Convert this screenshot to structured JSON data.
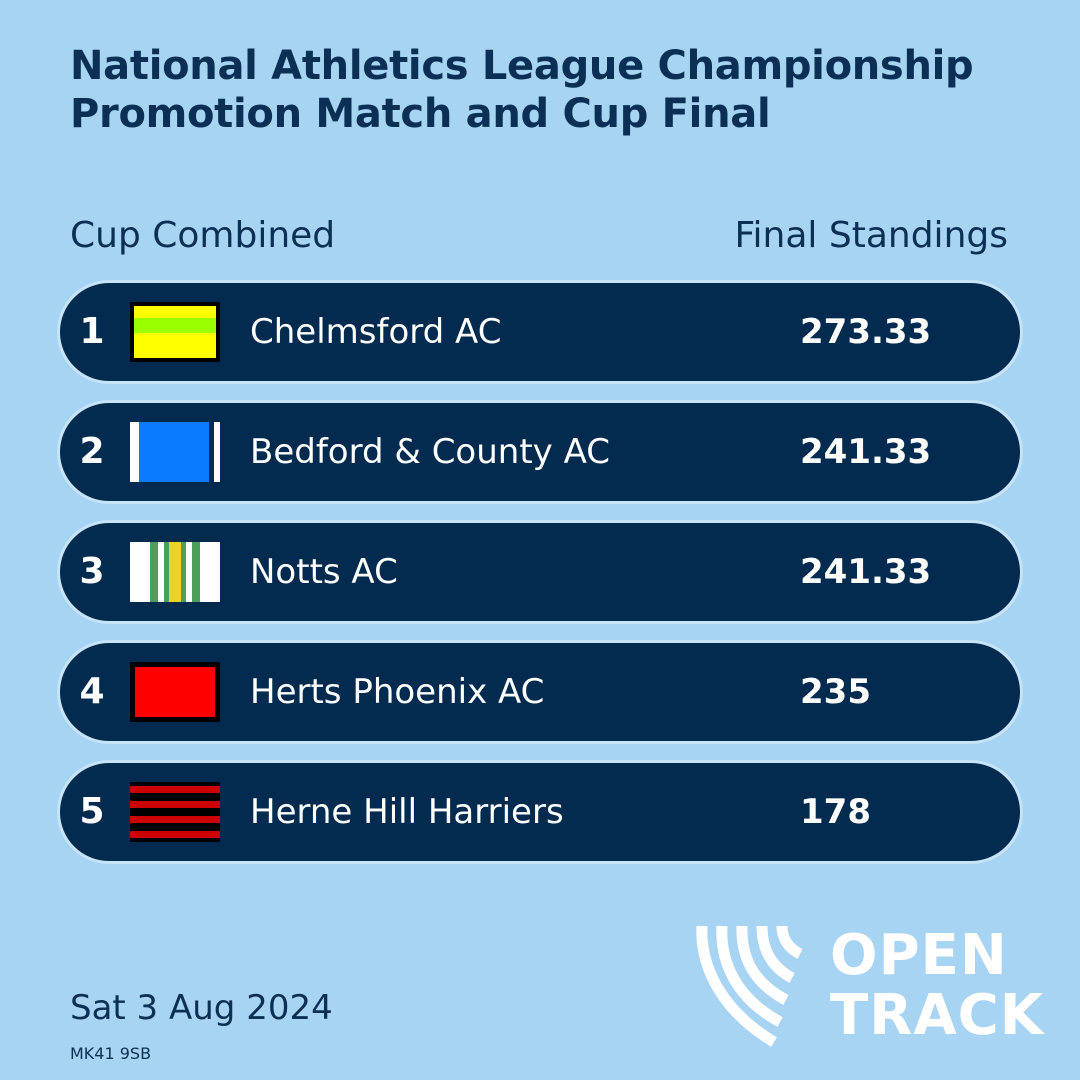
{
  "title": {
    "line1": "National Athletics League Championship",
    "line2": "Promotion Match and Cup Final"
  },
  "subheader": {
    "left": "Cup Combined",
    "right": "Final Standings"
  },
  "standings": [
    {
      "rank": "1",
      "team": "Chelmsford AC",
      "score": "273.33",
      "flag_icon": "chelmsford-colours-flag",
      "colors": [
        "#ffff00",
        "#99ff00",
        "#000000"
      ]
    },
    {
      "rank": "2",
      "team": "Bedford & County AC",
      "score": "241.33",
      "flag_icon": "bedford-colours-flag",
      "colors": [
        "#0a7bff",
        "#ffffff"
      ]
    },
    {
      "rank": "3",
      "team": "Notts AC",
      "score": "241.33",
      "flag_icon": "notts-colours-flag",
      "colors": [
        "#ffffff",
        "#4aa05a",
        "#f0d020"
      ]
    },
    {
      "rank": "4",
      "team": "Herts Phoenix AC",
      "score": "235",
      "flag_icon": "herts-phoenix-colours-flag",
      "colors": [
        "#ff0000",
        "#000000"
      ]
    },
    {
      "rank": "5",
      "team": "Herne Hill Harriers",
      "score": "178",
      "flag_icon": "herne-hill-colours-flag",
      "colors": [
        "#000000",
        "#cc0000"
      ]
    }
  ],
  "footer": {
    "date": "Sat 3 Aug 2024",
    "postcode": "MK41 9SB"
  },
  "logo": {
    "line1": "OPEN",
    "line2": "TRACK",
    "icon": "opentrack-logo-icon"
  },
  "colors": {
    "background": "#a8d4f4",
    "row": "#022b4f",
    "heading_text": "#0a3055",
    "row_text": "#ffffff"
  }
}
